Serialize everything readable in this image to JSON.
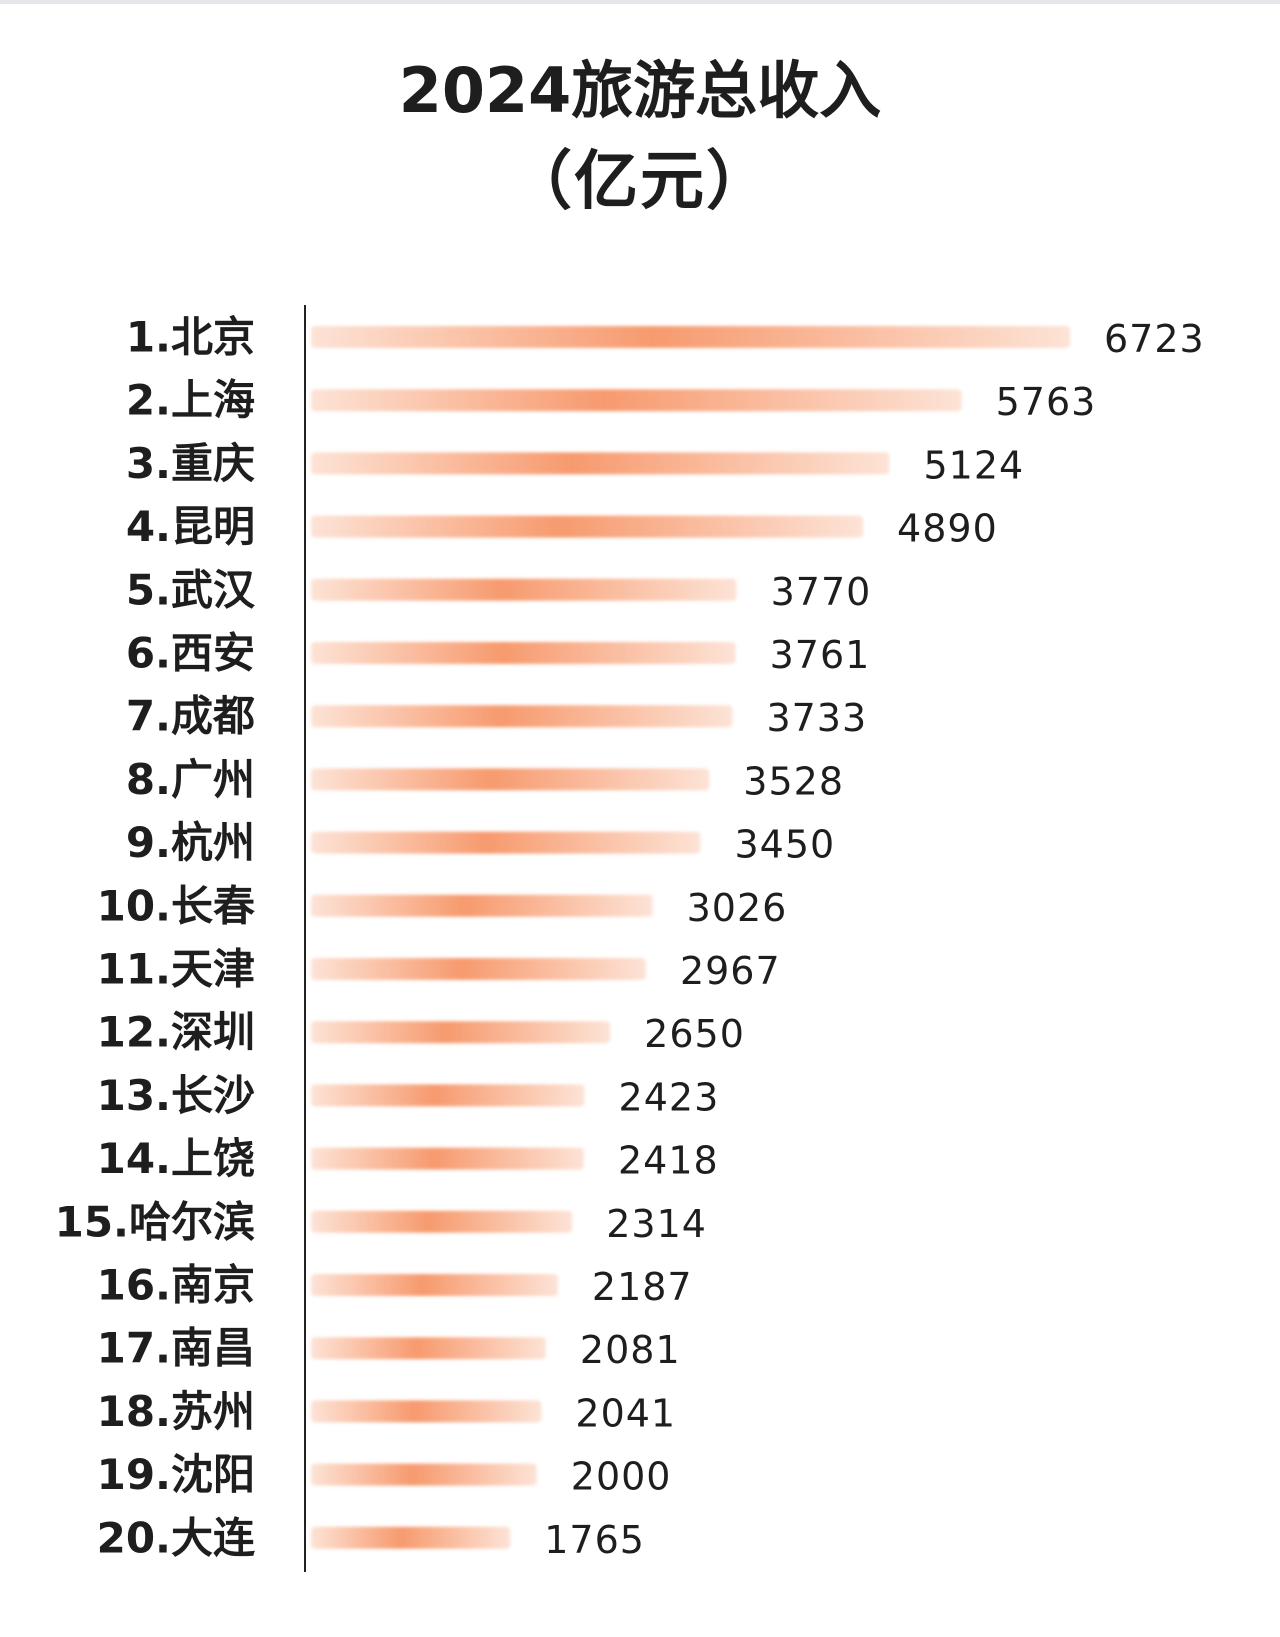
{
  "title_line1": "2024旅游总收入",
  "title_line2": "（亿元）",
  "colors": {
    "bar_core": "#f79a6e",
    "bar_edge": "#fde3d6",
    "axis": "#222222",
    "label": "#1e1e1e"
  },
  "chart_data": {
    "type": "bar",
    "orientation": "horizontal",
    "title": "2024旅游总收入",
    "subtitle": "（亿元）",
    "categories": [
      "1.北京",
      "2.上海",
      "3.重庆",
      "4.昆明",
      "5.武汉",
      "6.西安",
      "7.成都",
      "8.广州",
      "9.杭州",
      "10.长春",
      "11.天津",
      "12.深圳",
      "13.长沙",
      "14.上饶",
      "15.哈尔滨",
      "16.南京",
      "17.南昌",
      "18.苏州",
      "19.沈阳",
      "20.大连"
    ],
    "values": [
      6723,
      5763,
      5124,
      4890,
      3770,
      3761,
      3733,
      3528,
      3450,
      3026,
      2967,
      2650,
      2423,
      2418,
      2314,
      2187,
      2081,
      2041,
      2000,
      1765
    ],
    "value_labels": [
      "6723",
      "5763",
      "5124",
      "4890",
      "3770",
      "3761",
      "3733",
      "3528",
      "3450",
      "3026",
      "2967",
      "2650",
      "2423",
      "2418",
      "2314",
      "2187",
      "2081",
      "2041",
      "2000",
      "1765"
    ],
    "xlim": [
      0,
      6723
    ],
    "grid": false,
    "legend": "none"
  }
}
